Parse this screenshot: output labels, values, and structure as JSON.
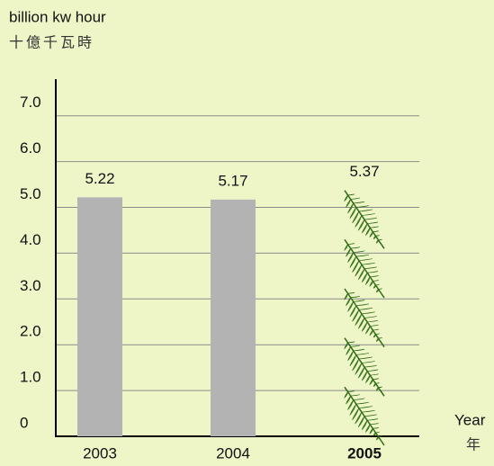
{
  "chart_data": {
    "type": "bar",
    "y_label": "billion kw hour",
    "y_label_zh": "十億千瓦時",
    "x_label": "Year",
    "x_label_zh": "年",
    "categories": [
      "2003",
      "2004",
      "2005"
    ],
    "values": [
      5.22,
      5.17,
      5.37
    ],
    "color": "#b3b3b3",
    "ylim": [
      0,
      7.8
    ],
    "yticks": [
      0,
      {
        "value": 1,
        "label": "1.0"
      },
      {
        "value": 2,
        "label": "2.0"
      },
      {
        "value": 3,
        "label": "3.0"
      },
      {
        "value": 4,
        "label": "4.0"
      },
      {
        "value": 5,
        "label": "5.0"
      },
      {
        "value": 6,
        "label": "6.0"
      },
      {
        "value": 7,
        "label": "7.0"
      }
    ],
    "grid": true
  }
}
